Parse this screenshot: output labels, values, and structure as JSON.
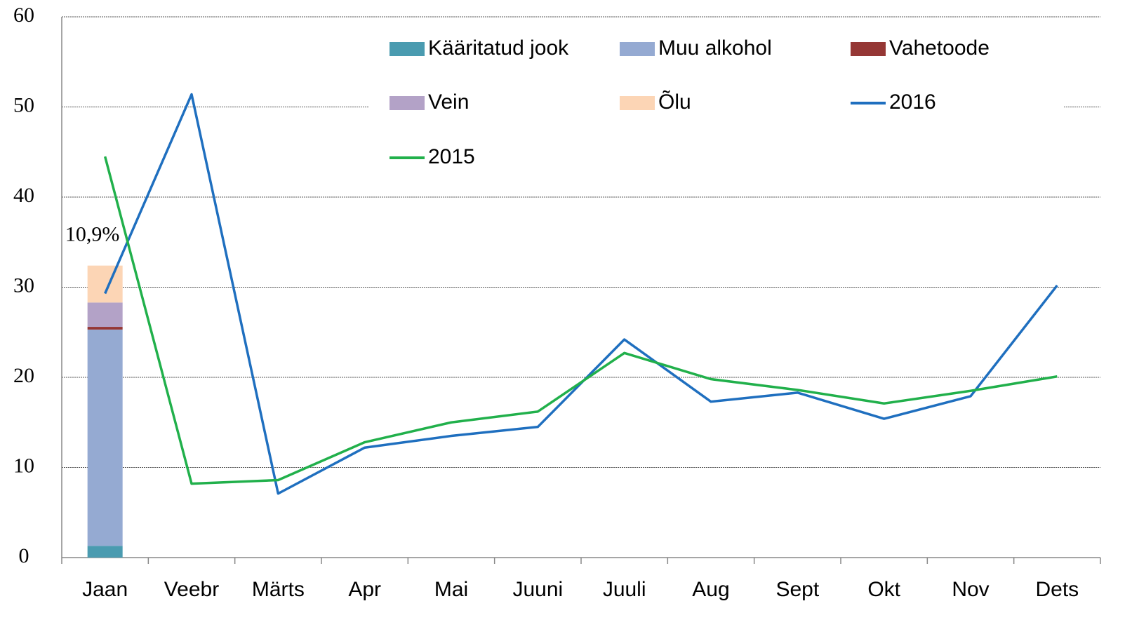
{
  "chart_data": {
    "type": "combo",
    "categories": [
      "Jaan",
      "Veebr",
      "Märts",
      "Apr",
      "Mai",
      "Juuni",
      "Juuli",
      "Aug",
      "Sept",
      "Okt",
      "Nov",
      "Dets"
    ],
    "series": [
      {
        "name": "Kääritatud jook",
        "type": "bar",
        "color": "#4a9bb0",
        "values": [
          1.3,
          null,
          null,
          null,
          null,
          null,
          null,
          null,
          null,
          null,
          null,
          null
        ]
      },
      {
        "name": "Muu alkohol",
        "type": "bar",
        "color": "#95aad2",
        "values": [
          24.0,
          null,
          null,
          null,
          null,
          null,
          null,
          null,
          null,
          null,
          null,
          null
        ]
      },
      {
        "name": "Vahetoode",
        "type": "bar",
        "color": "#953735",
        "values": [
          0.3,
          null,
          null,
          null,
          null,
          null,
          null,
          null,
          null,
          null,
          null,
          null
        ]
      },
      {
        "name": "Vein",
        "type": "bar",
        "color": "#b3a2c7",
        "values": [
          2.7,
          null,
          null,
          null,
          null,
          null,
          null,
          null,
          null,
          null,
          null,
          null
        ]
      },
      {
        "name": "Õlu",
        "type": "bar",
        "color": "#fcd5b5",
        "values": [
          4.1,
          null,
          null,
          null,
          null,
          null,
          null,
          null,
          null,
          null,
          null,
          null
        ]
      },
      {
        "name": "2016",
        "type": "line",
        "color": "#1f6fbf",
        "values": [
          29.3,
          51.4,
          7.1,
          12.2,
          13.5,
          14.5,
          24.2,
          17.3,
          18.3,
          15.4,
          17.9,
          30.2
        ]
      },
      {
        "name": "2015",
        "type": "line",
        "color": "#21b04b",
        "values": [
          44.5,
          8.2,
          8.6,
          12.8,
          15.0,
          16.2,
          22.7,
          19.8,
          18.6,
          17.1,
          18.5,
          20.1
        ]
      }
    ],
    "annotation": "10,9%",
    "ylim": [
      0,
      60
    ],
    "yticks": [
      0,
      10,
      20,
      30,
      40,
      50,
      60
    ],
    "grid": true
  }
}
